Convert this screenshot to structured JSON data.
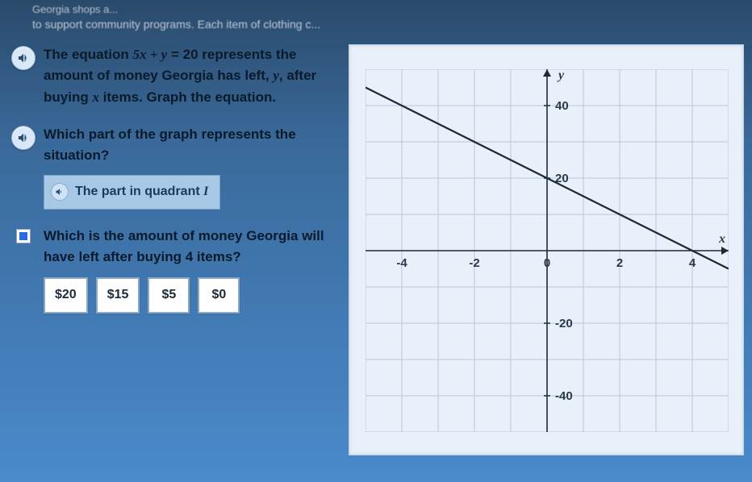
{
  "header": {
    "line1": "Georgia shops a...",
    "line2": "to support community programs. Each item of clothing c..."
  },
  "q1": {
    "pre": "The equation ",
    "eq_lhs": "5x + y",
    "eq_rhs": " = 20",
    "post": " represents the amount of money Georgia has left, ",
    "yvar": "y",
    "mid": ", after buying ",
    "xvar": "x",
    "tail": " items. Graph the equation."
  },
  "q2": {
    "text": "Which part of the graph represents the situation?",
    "answer_pre": "The part in quadrant ",
    "answer_q": "I"
  },
  "q3": {
    "text": "Which is the amount of money Georgia will have left after buying 4 items?",
    "choices": [
      "$20",
      "$15",
      "$5",
      "$0"
    ]
  },
  "graph": {
    "type": "line",
    "xlim": [
      -5,
      5
    ],
    "ylim": [
      -50,
      50
    ],
    "xtick_step": 2,
    "ytick_step": 20,
    "xticks_labeled": [
      -4,
      -2,
      0,
      2,
      4
    ],
    "yticks_labeled": [
      -40,
      -20,
      20,
      40
    ],
    "x_axis_label": "x",
    "y_axis_label": "y",
    "background_color": "#e8f0fa",
    "grid_color": "#b8c8dc",
    "axis_color": "#1a2a3a",
    "tick_font_color": "#2a3a4a",
    "tick_fontsize": 15,
    "line": {
      "slope": -5,
      "intercept": 20,
      "color": "#1a2a3a",
      "width": 2.2,
      "p1_data": [
        -5,
        45
      ],
      "p2_data": [
        5,
        -5
      ]
    }
  },
  "icons": {
    "sound_fill": "#2a4a6a"
  }
}
